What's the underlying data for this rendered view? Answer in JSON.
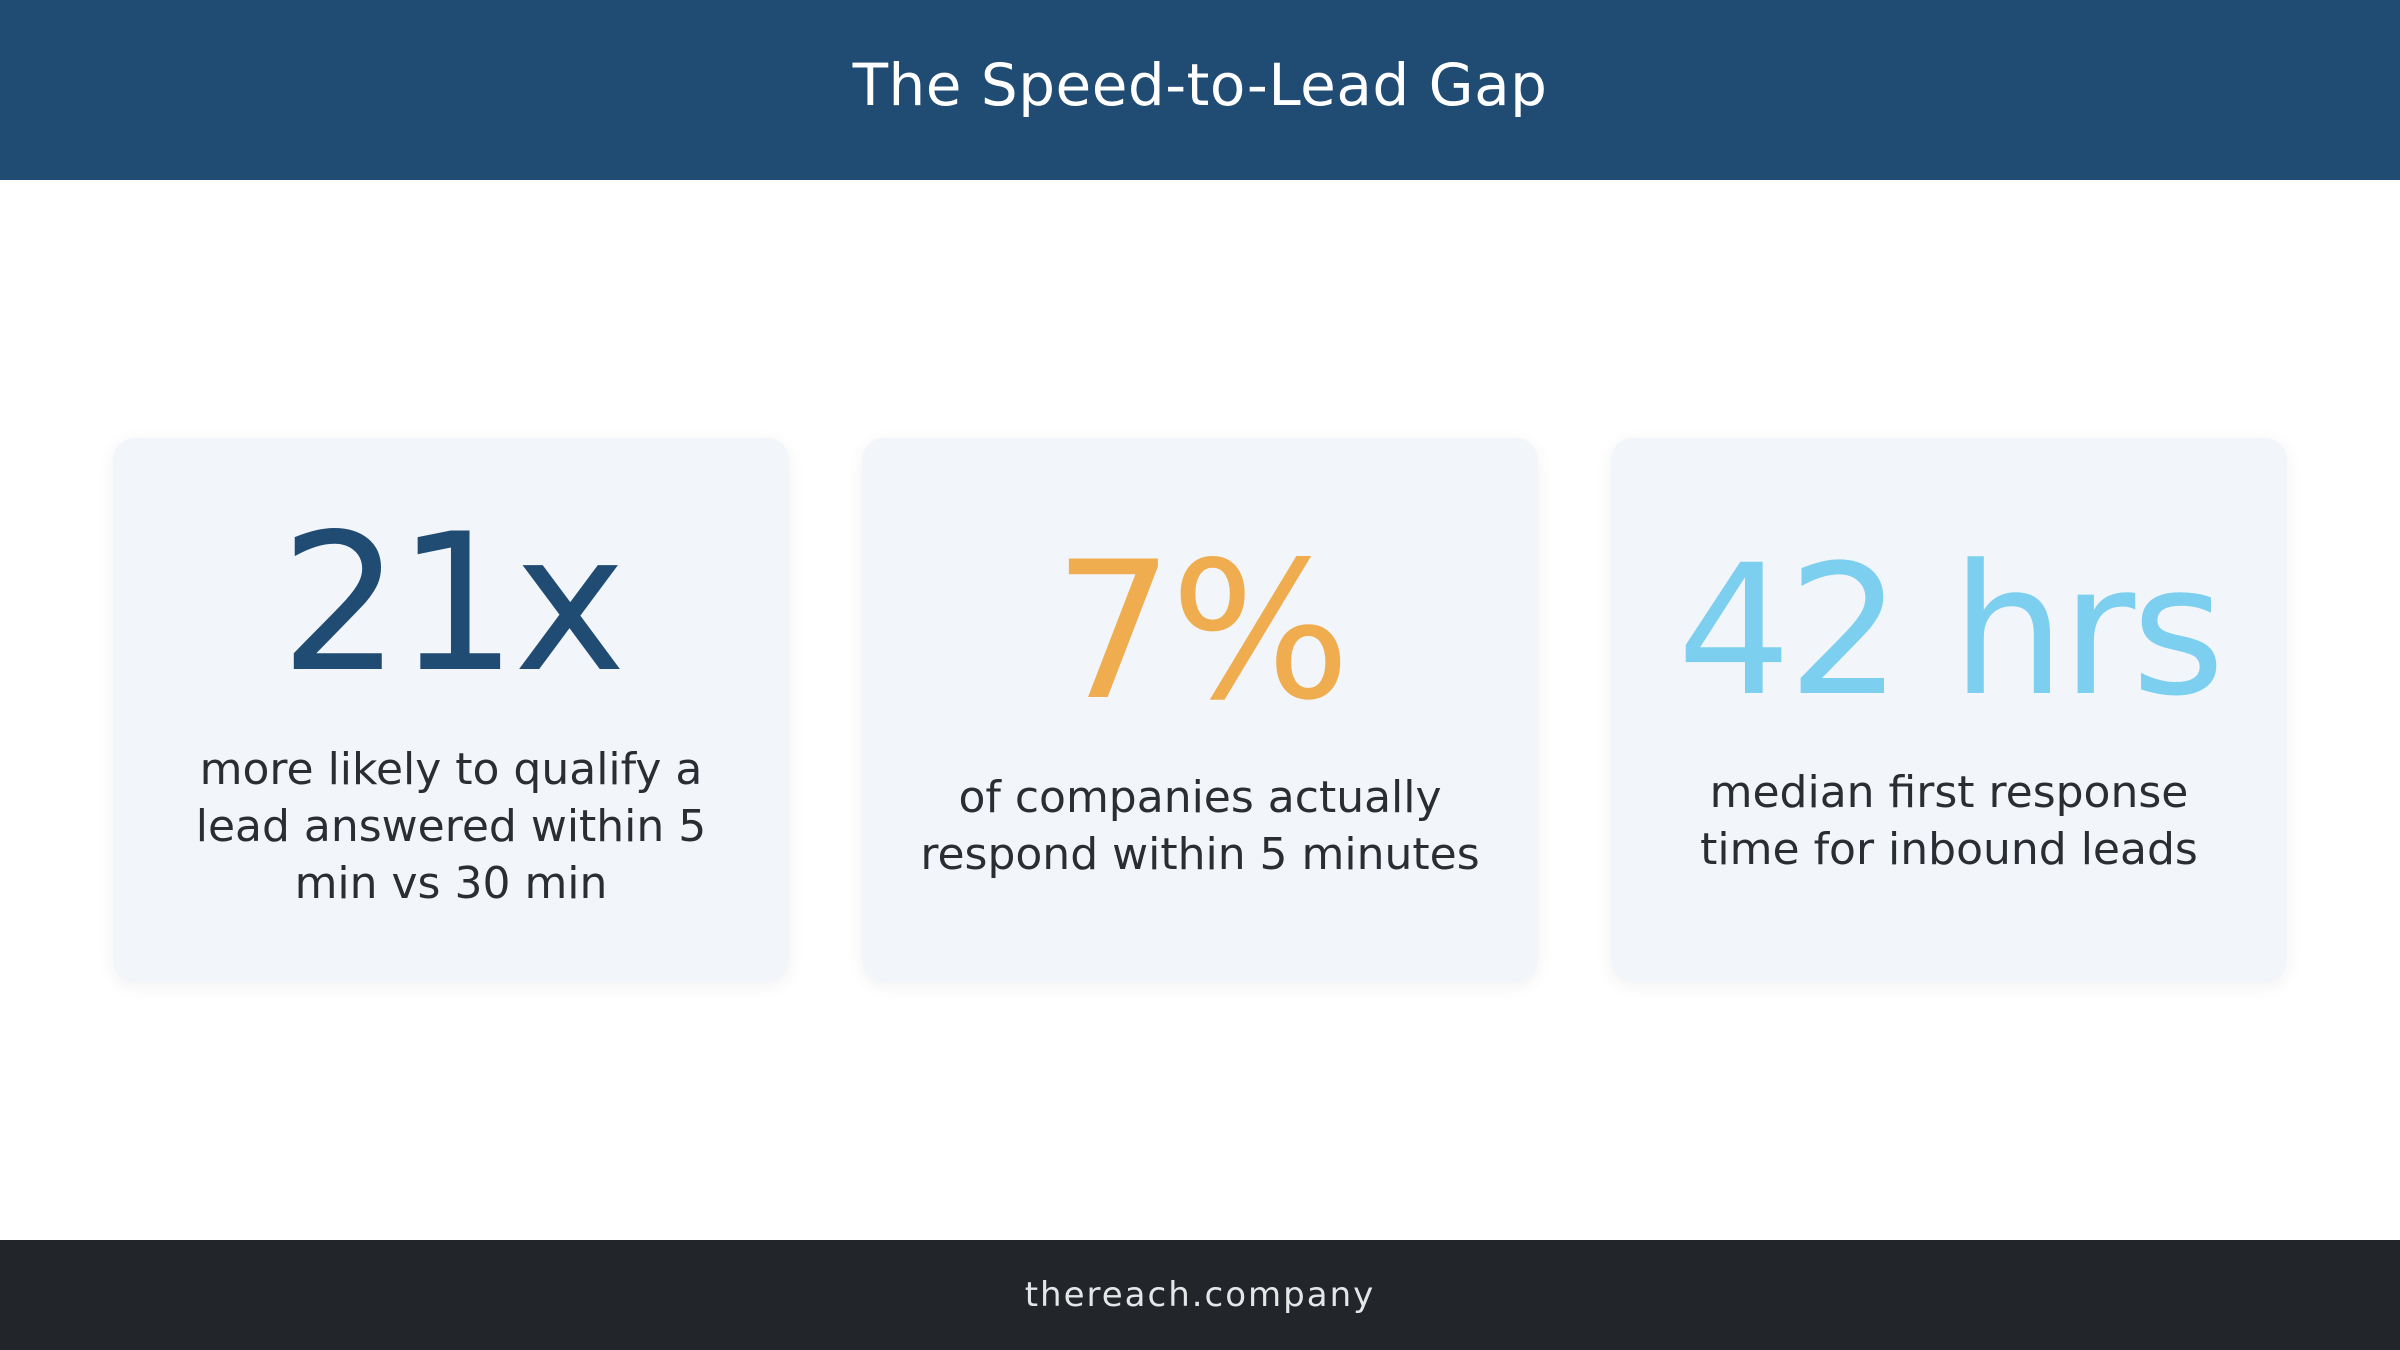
{
  "header": {
    "title": "The Speed-to-Lead Gap"
  },
  "stats": [
    {
      "value": "21x",
      "description": "more likely to qualify a lead answered within 5 min vs 30 min",
      "color": "#204c74"
    },
    {
      "value": "7%",
      "description": "of companies actually respond within 5 minutes",
      "color": "#f0ad50"
    },
    {
      "value": "42 hrs",
      "description": "median first response time for inbound leads",
      "color": "#7dcff0"
    }
  ],
  "footer": {
    "text": "thereach.company"
  },
  "colors": {
    "header_bg": "#204c74",
    "footer_bg": "#22262a",
    "card_bg": "#f2f6fa"
  }
}
